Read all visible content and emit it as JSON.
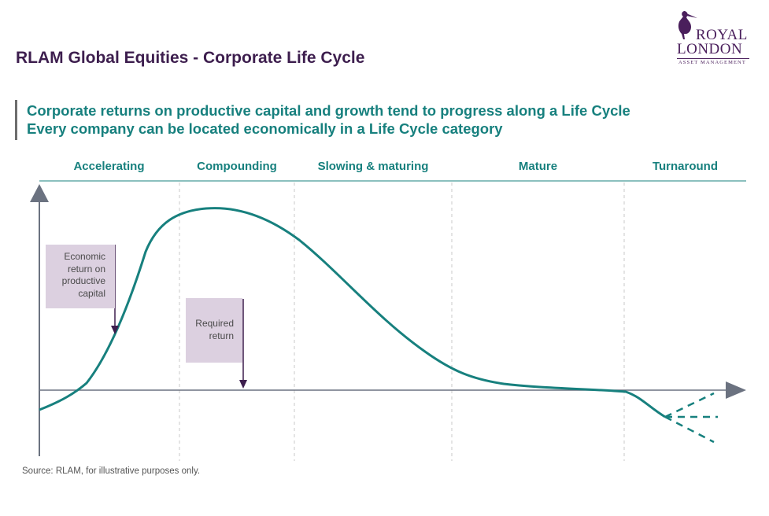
{
  "header": {
    "title": "RLAM Global Equities - Corporate Life Cycle"
  },
  "logo": {
    "line1": "ROYAL",
    "line2": "LONDON",
    "line3": "ASSET MANAGEMENT"
  },
  "subtitle": {
    "line1": "Corporate returns on productive capital and growth tend to progress along a Life Cycle",
    "line2": "Every company can be located economically in a Life Cycle category"
  },
  "stages": [
    {
      "label": "Accelerating"
    },
    {
      "label": "Compounding"
    },
    {
      "label": "Slowing & maturing"
    },
    {
      "label": "Mature"
    },
    {
      "label": "Turnaround"
    }
  ],
  "callouts": {
    "economic_return": "Economic return on productive capital",
    "required_return": "Required return"
  },
  "footer": {
    "source": "Source: RLAM, for illustrative purposes only."
  },
  "colors": {
    "title": "#3d1e4e",
    "accent_teal": "#17807e",
    "axis": "#6b7280",
    "callout_bg": "#dcd0e0",
    "callout_arrow": "#3d1e4e"
  }
}
